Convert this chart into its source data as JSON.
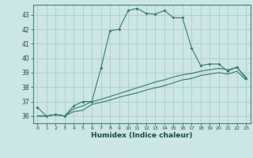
{
  "title": "",
  "xlabel": "Humidex (Indice chaleur)",
  "background_color": "#cce5e5",
  "grid_color": "#aacccc",
  "line_color": "#2e7d6e",
  "xlim": [
    -0.5,
    23.5
  ],
  "ylim": [
    35.5,
    43.7
  ],
  "yticks": [
    36,
    37,
    38,
    39,
    40,
    41,
    42,
    43
  ],
  "xticks": [
    0,
    1,
    2,
    3,
    4,
    5,
    6,
    7,
    8,
    9,
    10,
    11,
    12,
    13,
    14,
    15,
    16,
    17,
    18,
    19,
    20,
    21,
    22,
    23
  ],
  "series1_x": [
    0,
    1,
    2,
    3,
    4,
    5,
    6,
    7,
    8,
    9,
    10,
    11,
    12,
    13,
    14,
    15,
    16,
    17,
    18,
    19,
    20,
    21,
    22,
    23
  ],
  "series1_y": [
    36.6,
    36.0,
    36.1,
    36.0,
    36.7,
    37.0,
    37.0,
    39.3,
    41.9,
    42.0,
    43.3,
    43.45,
    43.1,
    43.05,
    43.3,
    42.8,
    42.8,
    40.7,
    39.5,
    39.6,
    39.6,
    39.1,
    39.4,
    38.6
  ],
  "series2_x": [
    0,
    1,
    2,
    3,
    4,
    5,
    6,
    7,
    8,
    9,
    10,
    11,
    12,
    13,
    14,
    15,
    16,
    17,
    18,
    19,
    20,
    21,
    22,
    23
  ],
  "series2_y": [
    36.0,
    36.0,
    36.1,
    36.0,
    36.5,
    36.7,
    37.0,
    37.15,
    37.35,
    37.55,
    37.75,
    37.95,
    38.15,
    38.35,
    38.5,
    38.7,
    38.85,
    38.95,
    39.1,
    39.2,
    39.3,
    39.2,
    39.35,
    38.7
  ],
  "series3_x": [
    0,
    1,
    2,
    3,
    4,
    5,
    6,
    7,
    8,
    9,
    10,
    11,
    12,
    13,
    14,
    15,
    16,
    17,
    18,
    19,
    20,
    21,
    22,
    23
  ],
  "series3_y": [
    36.0,
    36.0,
    36.1,
    36.0,
    36.3,
    36.4,
    36.8,
    36.95,
    37.1,
    37.3,
    37.45,
    37.6,
    37.8,
    37.95,
    38.1,
    38.3,
    38.5,
    38.6,
    38.8,
    38.9,
    39.0,
    38.9,
    39.1,
    38.5
  ]
}
